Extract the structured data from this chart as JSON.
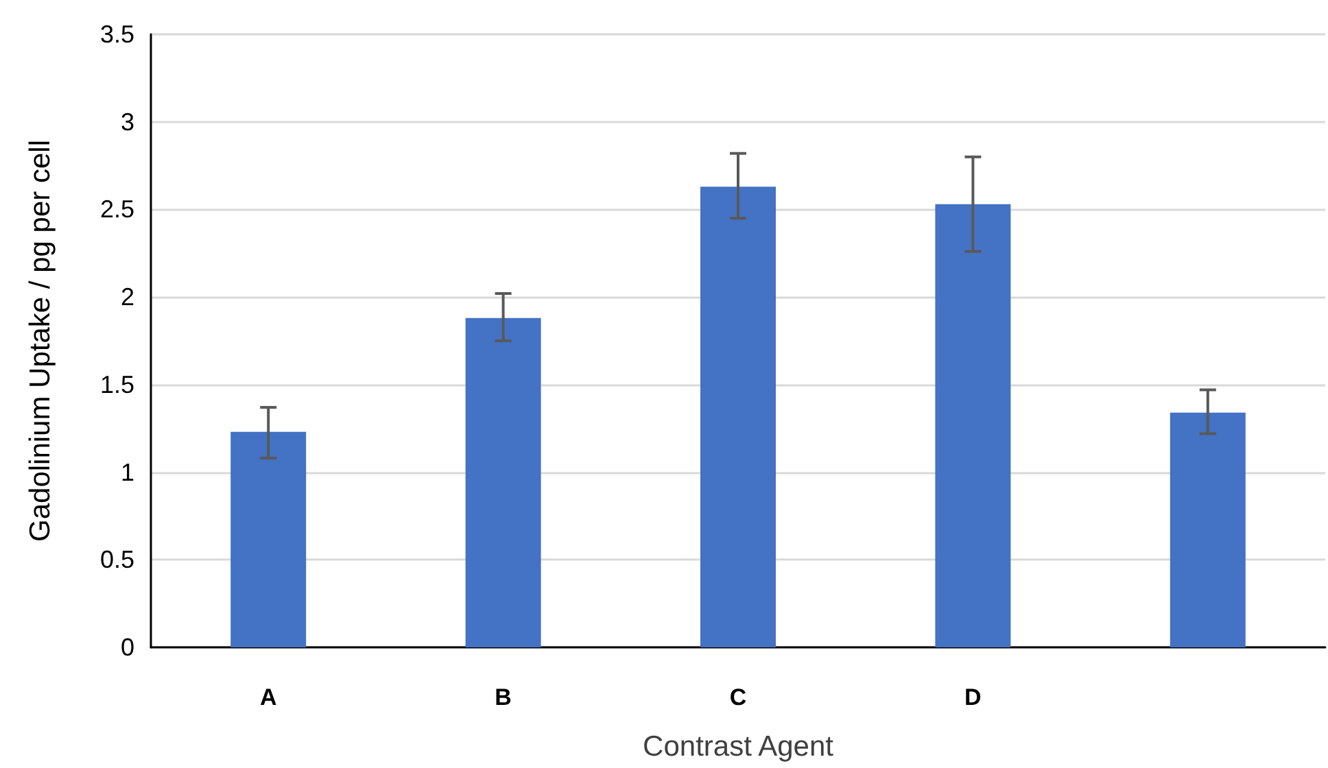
{
  "chart_data": {
    "type": "bar",
    "xlabel": "Contrast Agent",
    "ylabel": "Gadolinium Uptake / pg per cell",
    "categories": [
      "A",
      "B",
      "C",
      "D",
      null
    ],
    "values": [
      1.23,
      1.88,
      2.63,
      2.53,
      1.34
    ],
    "errors": [
      [
        1.08,
        1.37
      ],
      [
        1.75,
        2.02
      ],
      [
        2.45,
        2.82
      ],
      [
        2.26,
        2.8
      ],
      [
        1.22,
        1.47
      ]
    ],
    "color": "#4472c4",
    "ylim": [
      0,
      3.5
    ],
    "yticks": [
      0,
      0.5,
      1,
      1.5,
      2,
      2.5,
      3,
      3.5
    ],
    "grid": "y"
  }
}
